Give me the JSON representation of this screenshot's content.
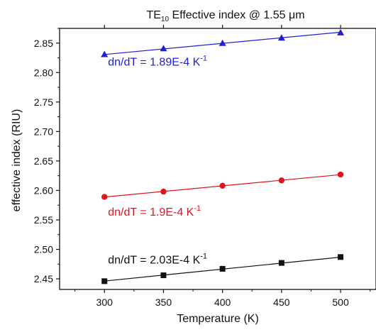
{
  "chart_data": {
    "type": "scatter",
    "title": {
      "prefix": "TE",
      "subscript": "10",
      "suffix": " Effective index @ 1.55 ",
      "unit": "μm"
    },
    "xlabel": "Temperature (K)",
    "ylabel": "effective index (RIU)",
    "xlim": [
      262,
      530
    ],
    "ylim": [
      2.432,
      2.875
    ],
    "x_ticks": [
      300,
      350,
      400,
      450,
      500
    ],
    "y_ticks": [
      2.45,
      2.5,
      2.55,
      2.6,
      2.65,
      2.7,
      2.75,
      2.8,
      2.85
    ],
    "grid": false,
    "legend": "none",
    "series": [
      {
        "marker": "triangle",
        "color": "#1f1fd6",
        "x": [
          300,
          350,
          400,
          450,
          500
        ],
        "y": [
          2.831,
          2.841,
          2.85,
          2.859,
          2.868
        ],
        "fit": [
          2.8307,
          2.8685
        ]
      },
      {
        "marker": "circle",
        "color": "#e0141e",
        "x": [
          300,
          350,
          400,
          450,
          500
        ],
        "y": [
          2.589,
          2.598,
          2.608,
          2.617,
          2.627
        ],
        "fit": [
          2.5888,
          2.6268
        ]
      },
      {
        "marker": "square",
        "color": "#111111",
        "x": [
          300,
          350,
          400,
          450,
          500
        ],
        "y": [
          2.446,
          2.456,
          2.467,
          2.477,
          2.487
        ],
        "fit": [
          2.4462,
          2.4868
        ]
      }
    ],
    "annotations": [
      {
        "text_main": "dn/dT = 1.89E-4 K",
        "text_sup": "-1",
        "color": "#1f1fd6",
        "x": 303,
        "y": 2.812
      },
      {
        "text_main": "dn/dT = 1.9E-4 K",
        "text_sup": "-1",
        "color": "#e0141e",
        "x": 303,
        "y": 2.557
      },
      {
        "text_main": "dn/dT = 2.03E-4 K",
        "text_sup": "-1",
        "color": "#111111",
        "x": 303,
        "y": 2.476
      }
    ]
  }
}
